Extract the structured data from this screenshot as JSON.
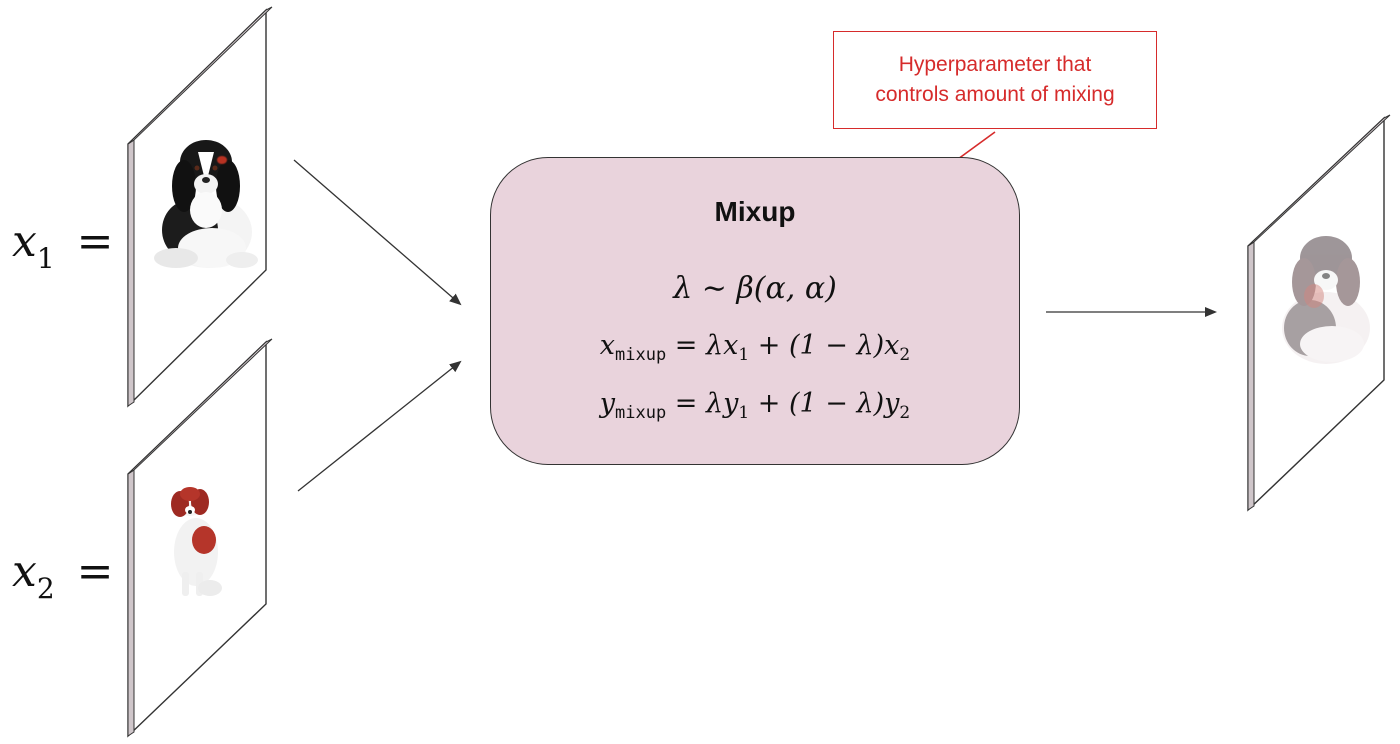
{
  "inputs": {
    "x1": {
      "var": "x",
      "sub": "1",
      "eq": "="
    },
    "x2": {
      "var": "x",
      "sub": "2",
      "eq": "="
    }
  },
  "mixup": {
    "title": "Mixup",
    "eq1": {
      "lhs": "λ",
      "op": " ∼ ",
      "rhs": "β(α, α)"
    },
    "eq2": {
      "lhs": "x",
      "sub": "mixup",
      "rhs_a": " = λx",
      "sub_a": "1",
      "rhs_b": " + (1 − λ)x",
      "sub_b": "2"
    },
    "eq3": {
      "lhs": "y",
      "sub": "mixup",
      "rhs_a": " = λy",
      "sub_a": "1",
      "rhs_b": " + (1 − λ)y",
      "sub_b": "2"
    }
  },
  "annotation": {
    "line1": "Hyperparameter that",
    "line2": "controls amount of mixing",
    "color": "#d62b2b"
  },
  "colors": {
    "box_fill": "#e9d3dc",
    "arrow": "#333333",
    "frame_edge": "#c9c0c4"
  },
  "images": {
    "dog1": "black-and-white-spaniel-icon",
    "dog2": "red-and-white-spaniel-icon",
    "mixed": "blended-spaniel-icon"
  }
}
